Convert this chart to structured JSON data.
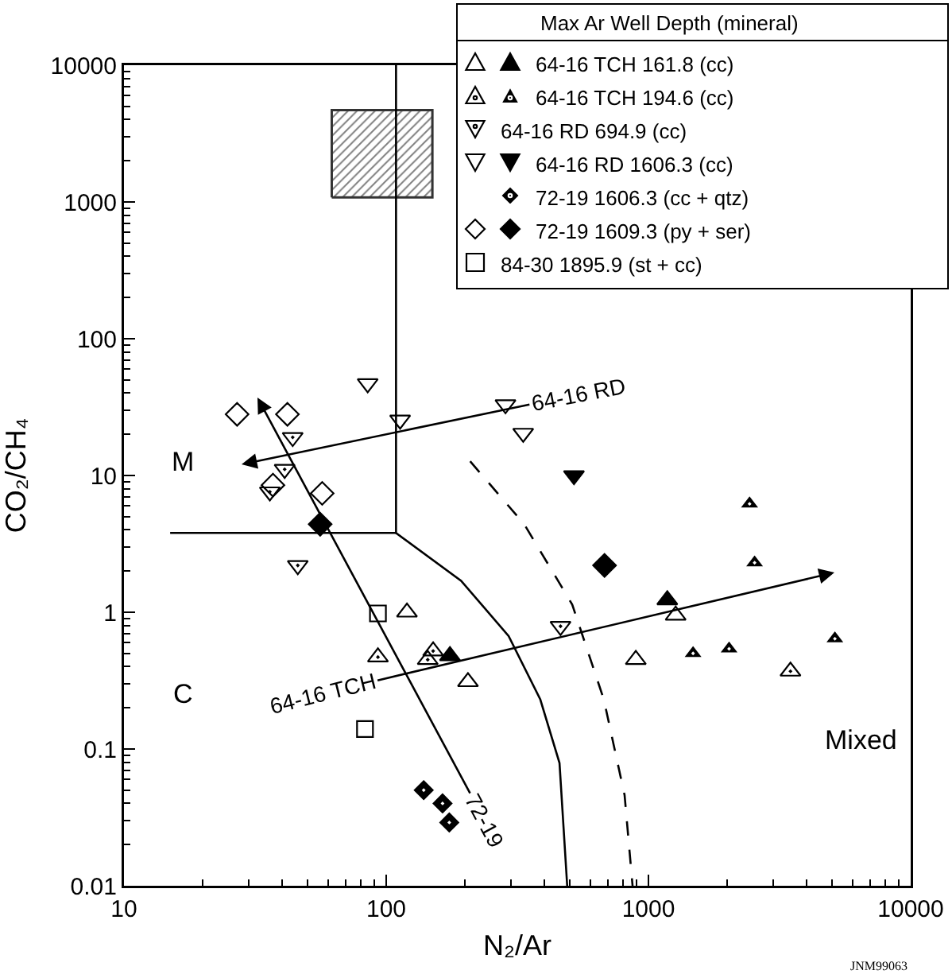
{
  "chart_data": {
    "type": "scatter",
    "xlabel": "N₂/Ar",
    "ylabel": "CO₂/CH₄",
    "log": "xy",
    "xlim": [
      10,
      10000
    ],
    "xticks": [
      10,
      100,
      1000,
      10000
    ],
    "ylim": [
      0.01,
      10000
    ],
    "yticks": [
      0.01,
      0.1,
      1,
      10,
      100,
      1000,
      10000
    ],
    "legend": "top right",
    "legend_title": "Max Ar Well Depth (mineral)",
    "series": [
      {
        "type": "area",
        "color": "#808080",
        "x": [
          62,
          150,
          150,
          62,
          62
        ],
        "values": [
          1080,
          1080,
          4700,
          4700,
          1080
        ]
      },
      {
        "type": "line",
        "color": "#000000",
        "x": [
          109,
          109,
          193,
          293,
          387,
          458,
          490
        ],
        "values": [
          10000,
          3.8,
          1.7,
          0.67,
          0.23,
          0.079,
          0.01
        ]
      },
      {
        "type": "line",
        "color": "#000000",
        "x": [
          15,
          109
        ],
        "values": [
          3.8,
          3.8
        ]
      },
      {
        "type": "line",
        "color": "#000000",
        "line_style": "dashed",
        "x": [
          209,
          336,
          512,
          676,
          811,
          870
        ],
        "values": [
          12.7,
          4.4,
          1.14,
          0.23,
          0.046,
          0.01
        ]
      },
      {
        "color": "#000000",
        "marker": "triangle-open",
        "x": [
          120,
          205,
          1270,
          895
        ],
        "values": [
          1.0,
          0.31,
          0.95,
          0.45
        ]
      },
      {
        "name": "64-16 TCH 161.8 (cc)",
        "color": "#000000",
        "marker": "triangle",
        "x": [
          175,
          1180
        ],
        "values": [
          0.48,
          1.23
        ]
      },
      {
        "color": "#000000",
        "marker": "triangle-open-cross",
        "x": [
          93,
          151,
          144,
          3480
        ],
        "values": [
          0.47,
          0.52,
          0.45,
          0.37
        ]
      },
      {
        "name": "64-16 TCH 194.6 (cc)",
        "color": "#000000",
        "marker": "triangle-cross",
        "x": [
          2430,
          2540,
          1480,
          2030,
          5140
        ],
        "values": [
          6.2,
          2.3,
          0.5,
          0.54,
          0.64
        ]
      },
      {
        "name": "64-16 RD 694.9 (cc)",
        "color": "#000000",
        "marker": "triangle-down-open-cross",
        "x": [
          44,
          41,
          36,
          46,
          462
        ],
        "values": [
          19,
          11.1,
          7.6,
          2.2,
          0.79
        ]
      },
      {
        "color": "#000000",
        "marker": "triangle-down-open",
        "x": [
          85,
          113,
          285,
          333
        ],
        "values": [
          47,
          25.5,
          33,
          20.4
        ]
      },
      {
        "name": "64-16 RD 1606.3 (cc)",
        "color": "#000000",
        "marker": "triangle-down",
        "x": [
          520
        ],
        "values": [
          10
        ]
      },
      {
        "name": "72-19 1606.3 (cc + qtz)",
        "color": "#000000",
        "marker": "diamond-cross",
        "x": [
          139,
          164,
          174
        ],
        "values": [
          0.05,
          0.04,
          0.029
        ]
      },
      {
        "color": "#000000",
        "marker": "diamond-open",
        "x": [
          27,
          42,
          57,
          37
        ],
        "values": [
          28,
          28,
          7.4,
          8.5
        ]
      },
      {
        "name": "72-19 1609.3 (py + ser)",
        "color": "#000000",
        "marker": "diamond",
        "x": [
          56,
          680
        ],
        "values": [
          4.4,
          2.2
        ]
      },
      {
        "name": "84-30 1895.9 (st + cc)",
        "color": "#000000",
        "marker": "square-open",
        "x": [
          93,
          83
        ],
        "values": [
          0.98,
          0.14
        ]
      }
    ],
    "annotations": [
      "64-16 RD",
      "64-16 TCH",
      "72-19",
      "M",
      "C",
      "Mixed",
      "JNM99063"
    ]
  }
}
